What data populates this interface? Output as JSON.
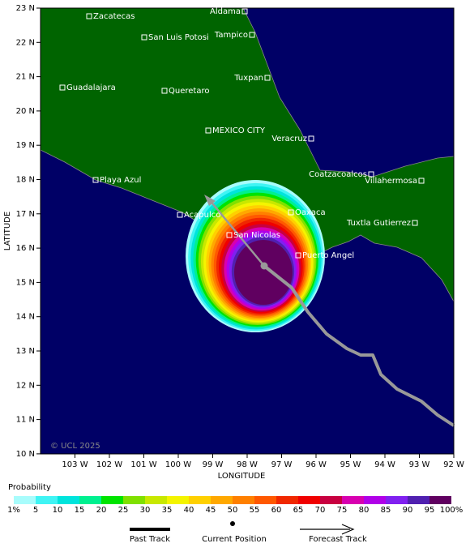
{
  "map": {
    "y_axis_label": "LATITUDE",
    "x_axis_label": "LONGITUDE",
    "x_ticks": [
      "103 W",
      "102 W",
      "101 W",
      "100 W",
      "99 W",
      "98 W",
      "97 W",
      "96 W",
      "95 W",
      "94 W",
      "93 W",
      "92 W"
    ],
    "y_ticks": [
      "23 N",
      "22 N",
      "21 N",
      "20 N",
      "19 N",
      "18 N",
      "17 N",
      "16 N",
      "15 N",
      "14 N",
      "13 N",
      "12 N",
      "11 N",
      "10 N"
    ],
    "cities": [
      "Zacatecas",
      "Aldama",
      "San Luis Potosi",
      "Tampico",
      "Guadalajara",
      "Queretaro",
      "Tuxpan",
      "MEXICO CITY",
      "Veracruz",
      "Coatzacoalcos",
      "Villahermosa",
      "Playa Azul",
      "Acapulco",
      "Oaxaca",
      "Tuxtla Gutierrez",
      "San Nicolas",
      "Puerto Angel"
    ],
    "credit": "© UCL 2025"
  },
  "legend": {
    "title": "Probability",
    "scale_labels": [
      "1%",
      "5",
      "10",
      "15",
      "20",
      "25",
      "30",
      "35",
      "40",
      "45",
      "50",
      "55",
      "60",
      "65",
      "70",
      "75",
      "80",
      "85",
      "90",
      "95",
      "100%"
    ],
    "colors": [
      "#a8fcfc",
      "#40f4f4",
      "#00e4dc",
      "#00f090",
      "#00e400",
      "#80e000",
      "#c8e800",
      "#f4f400",
      "#ffd000",
      "#ffa800",
      "#ff8000",
      "#ff5800",
      "#f02800",
      "#f00000",
      "#c80040",
      "#d800b0",
      "#b000e8",
      "#8020f0",
      "#5020b0",
      "#600060"
    ],
    "track_items": [
      "Past Track",
      "Current Position",
      "Forecast Track"
    ]
  }
}
